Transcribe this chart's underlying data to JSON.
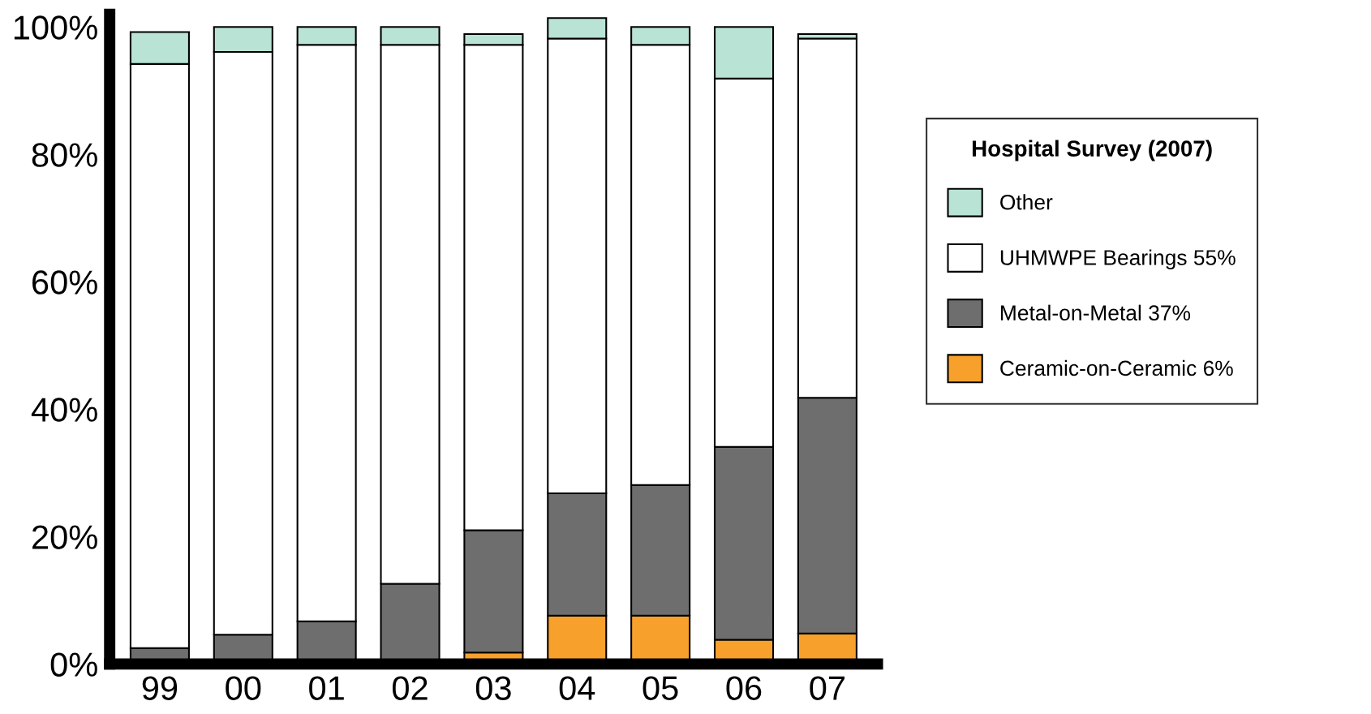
{
  "chart_data": {
    "type": "bar",
    "stacked": true,
    "legend_title": "Hospital Survey (2007)",
    "legend": "right",
    "grid": false,
    "categories": [
      "99",
      "00",
      "01",
      "02",
      "03",
      "04",
      "05",
      "06",
      "07"
    ],
    "ylim": [
      0,
      102
    ],
    "yticks": [
      {
        "value": 0,
        "label": "0%"
      },
      {
        "value": 20,
        "label": "20%"
      },
      {
        "value": 40,
        "label": "40%"
      },
      {
        "value": 60,
        "label": "60%"
      },
      {
        "value": 80,
        "label": "80%"
      },
      {
        "value": 100,
        "label": "100%"
      }
    ],
    "series": [
      {
        "name": "Ceramic-on-Ceramic 6%",
        "color": "#f7a12c",
        "values": [
          0,
          0,
          0,
          0,
          1.8,
          7.6,
          7.6,
          3.8,
          4.8
        ]
      },
      {
        "name": "Metal-on-Metal 37%",
        "color": "#6e6e6e",
        "values": [
          2.5,
          4.6,
          6.7,
          12.6,
          19.2,
          19.2,
          20.5,
          30.3,
          37
        ]
      },
      {
        "name": "UHMWPE Bearings 55%",
        "color": "#ffffff",
        "values": [
          91.7,
          91.5,
          90.5,
          84.6,
          76.2,
          71.4,
          69.1,
          57.8,
          56.4
        ]
      },
      {
        "name": "Other",
        "color": "#b9e3d4",
        "values": [
          5,
          3.9,
          2.8,
          2.8,
          1.7,
          3.2,
          2.8,
          8.1,
          0.7
        ]
      }
    ]
  }
}
